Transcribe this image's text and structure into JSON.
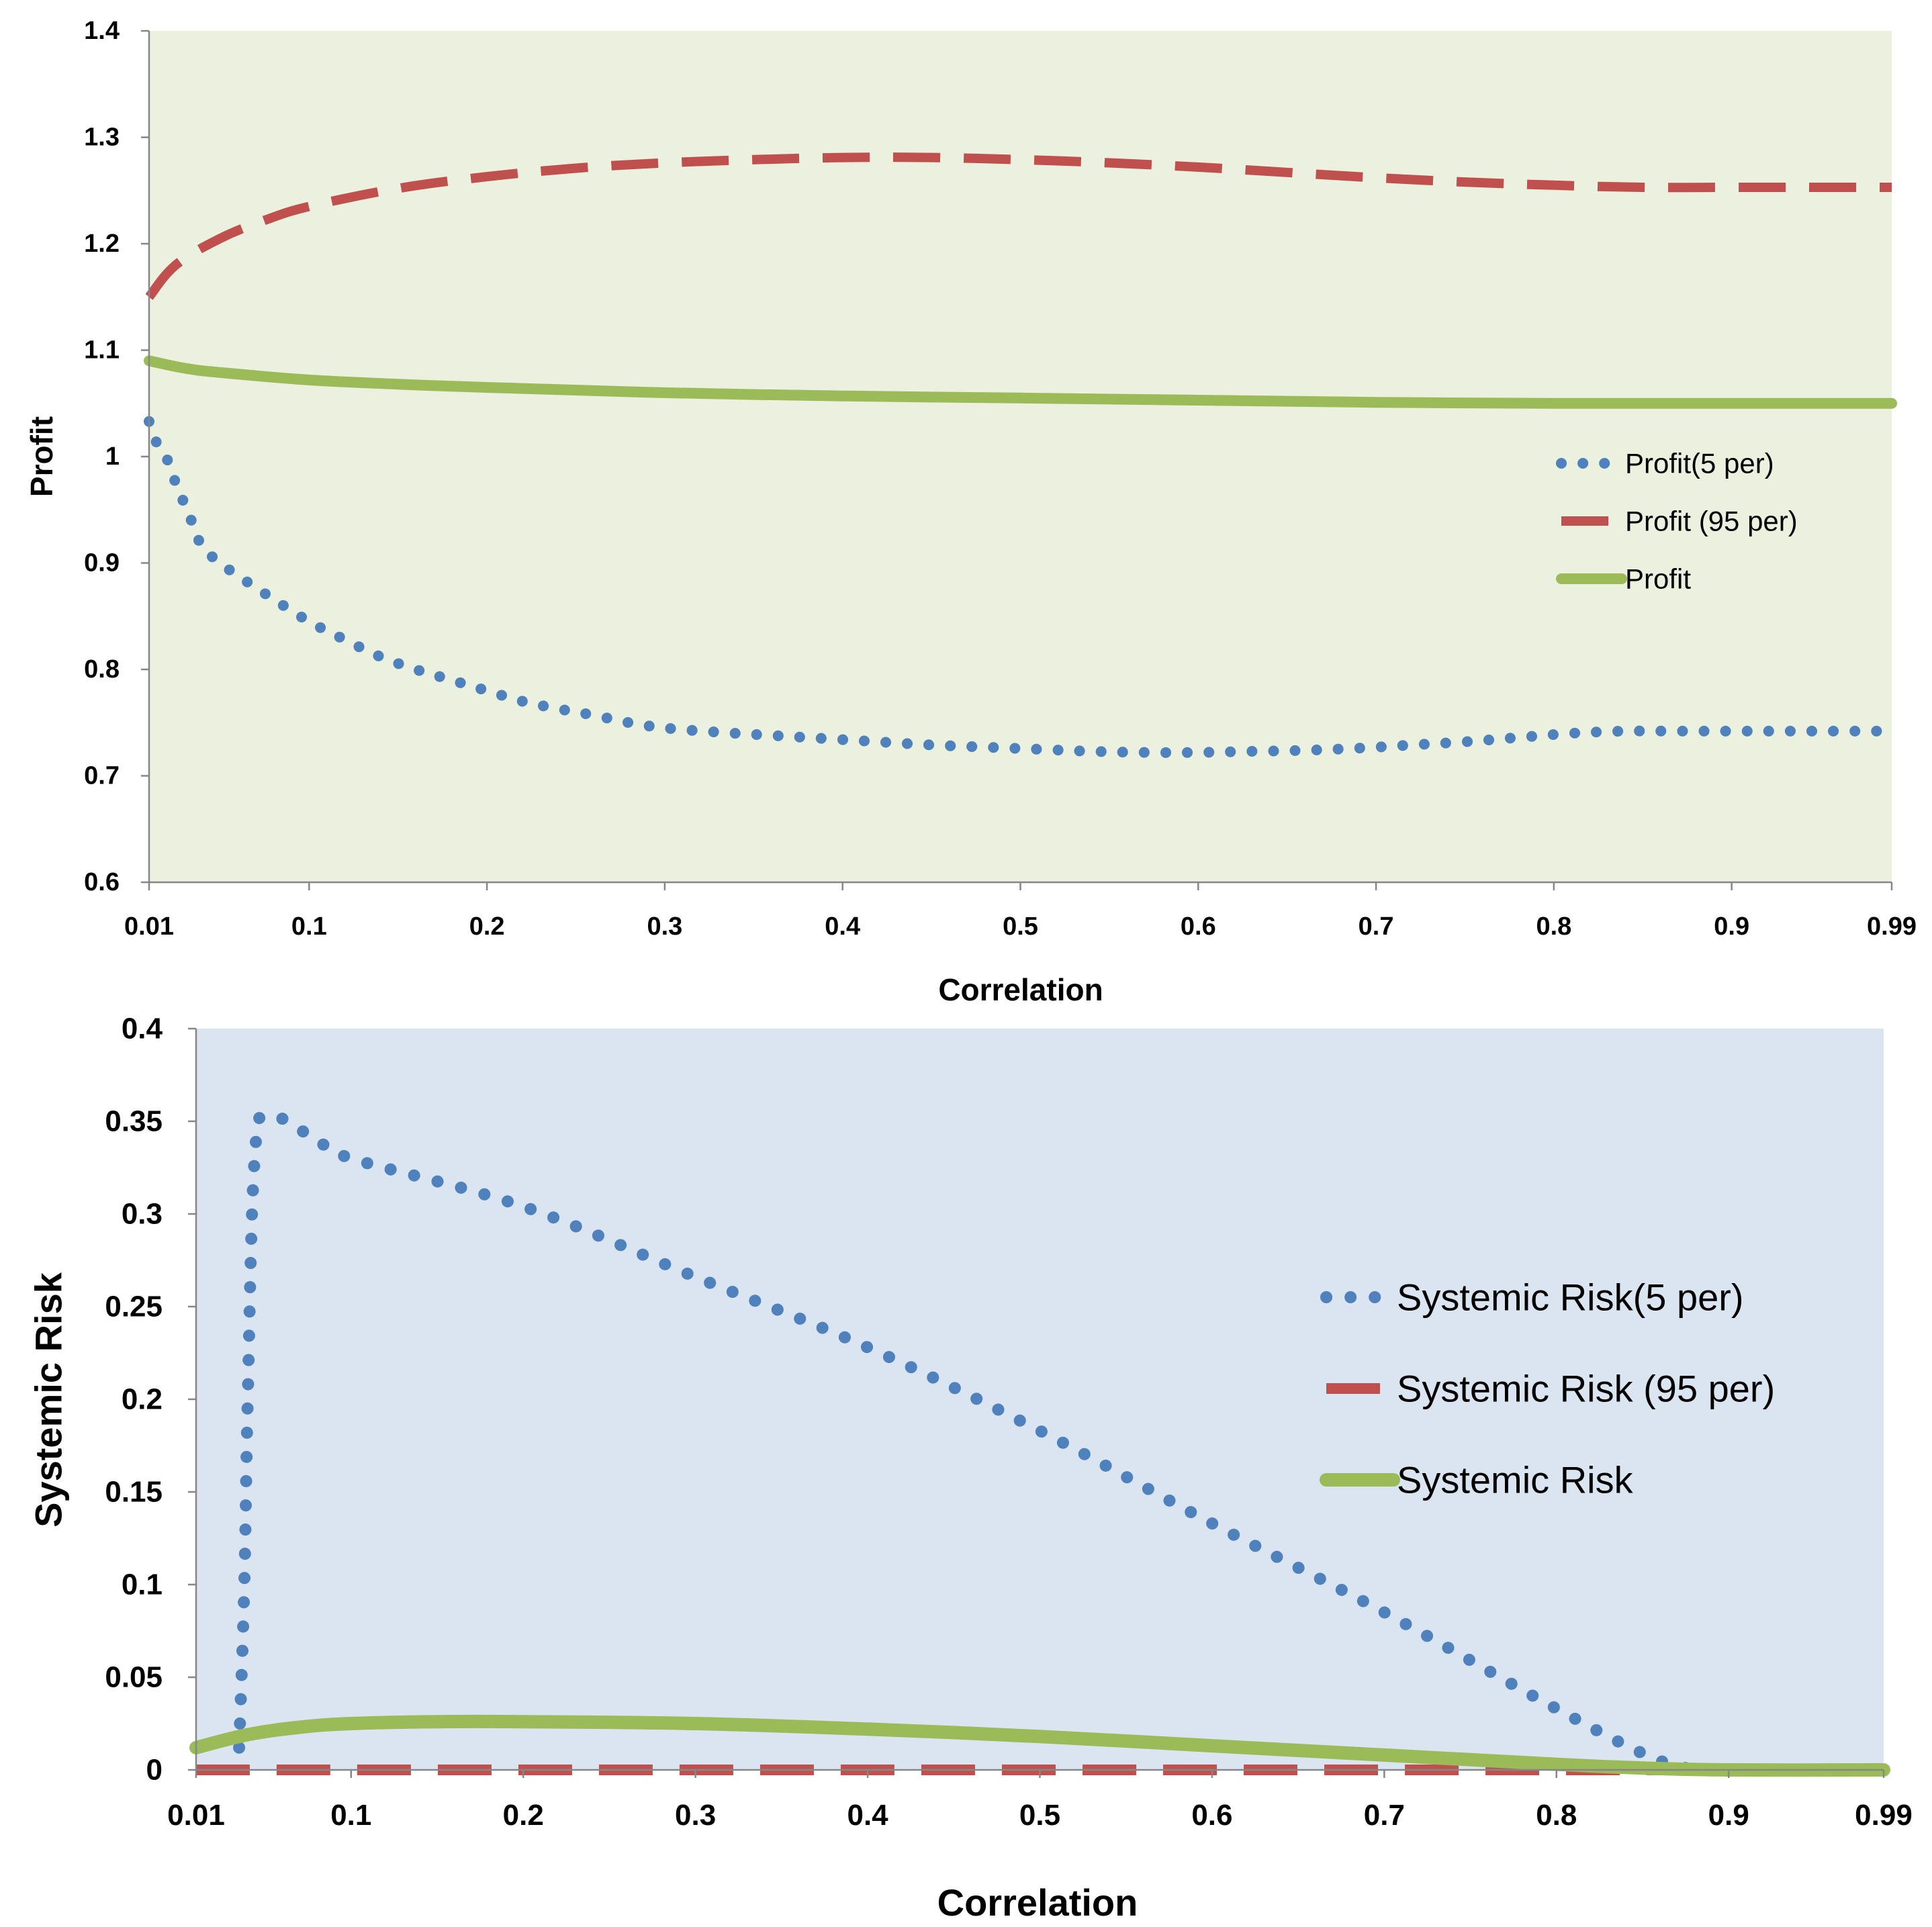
{
  "colors": {
    "series_5per": "#4f81bd",
    "series_95per": "#c0504d",
    "series_mean": "#9bbb59",
    "panel1_bg": "#ebf1de",
    "panel2_bg": "#dbe5f1",
    "axis": "#868686"
  },
  "chart_data": [
    {
      "type": "line",
      "title": "",
      "xlabel": "Correlation",
      "ylabel": "Profit",
      "x_tick_labels": [
        "0.01",
        "0.1",
        "0.2",
        "0.3",
        "0.4",
        "0.5",
        "0.6",
        "0.7",
        "0.8",
        "0.9",
        "0.99"
      ],
      "x_tick_values": [
        0.01,
        0.1,
        0.2,
        0.3,
        0.4,
        0.5,
        0.6,
        0.7,
        0.8,
        0.9,
        0.99
      ],
      "xlim": [
        0.01,
        0.99
      ],
      "y_tick_labels": [
        "0.6",
        "0.7",
        "0.8",
        "0.9",
        "1",
        "1.1",
        "1.2",
        "1.3",
        "1.4"
      ],
      "y_tick_values": [
        0.6,
        0.7,
        0.8,
        0.9,
        1.0,
        1.1,
        1.2,
        1.3,
        1.4
      ],
      "ylim": [
        0.6,
        1.4
      ],
      "grid": false,
      "legend_position": "right",
      "series": [
        {
          "name": "Profit(5 per)",
          "style": "dotted",
          "x": [
            0.01,
            0.015,
            0.02,
            0.025,
            0.03,
            0.035,
            0.04,
            0.05,
            0.06,
            0.07,
            0.08,
            0.1,
            0.12,
            0.14,
            0.16,
            0.18,
            0.2,
            0.22,
            0.24,
            0.26,
            0.28,
            0.3,
            0.33,
            0.36,
            0.39,
            0.42,
            0.45,
            0.48,
            0.51,
            0.54,
            0.57,
            0.6,
            0.63,
            0.66,
            0.69,
            0.72,
            0.75,
            0.78,
            0.81,
            0.84,
            0.87,
            0.9,
            0.93,
            0.96,
            0.99
          ],
          "values": [
            1.033,
            1.01,
            0.998,
            0.975,
            0.955,
            0.935,
            0.915,
            0.9,
            0.888,
            0.877,
            0.866,
            0.845,
            0.828,
            0.812,
            0.8,
            0.79,
            0.78,
            0.77,
            0.763,
            0.757,
            0.75,
            0.745,
            0.741,
            0.738,
            0.735,
            0.732,
            0.729,
            0.727,
            0.725,
            0.723,
            0.722,
            0.722,
            0.723,
            0.724,
            0.726,
            0.729,
            0.732,
            0.736,
            0.74,
            0.742,
            0.742,
            0.742,
            0.742,
            0.742,
            0.742
          ]
        },
        {
          "name": "Profit (95 per)",
          "style": "dashed",
          "x": [
            0.01,
            0.025,
            0.05,
            0.075,
            0.1,
            0.15,
            0.2,
            0.25,
            0.3,
            0.35,
            0.4,
            0.45,
            0.5,
            0.55,
            0.6,
            0.65,
            0.7,
            0.75,
            0.8,
            0.85,
            0.9,
            0.95,
            0.99
          ],
          "values": [
            1.15,
            1.18,
            1.205,
            1.222,
            1.235,
            1.252,
            1.263,
            1.271,
            1.276,
            1.279,
            1.281,
            1.281,
            1.279,
            1.276,
            1.272,
            1.267,
            1.262,
            1.258,
            1.255,
            1.253,
            1.253,
            1.253,
            1.253
          ]
        },
        {
          "name": "Profit",
          "style": "solid",
          "x": [
            0.01,
            0.03,
            0.05,
            0.1,
            0.15,
            0.2,
            0.3,
            0.4,
            0.5,
            0.6,
            0.7,
            0.8,
            0.9,
            0.99
          ],
          "values": [
            1.09,
            1.083,
            1.079,
            1.072,
            1.068,
            1.065,
            1.06,
            1.057,
            1.055,
            1.053,
            1.051,
            1.05,
            1.05,
            1.05
          ]
        }
      ]
    },
    {
      "type": "line",
      "title": "",
      "xlabel": "Correlation",
      "ylabel": "Systemic Risk",
      "x_tick_labels": [
        "0.01",
        "0.1",
        "0.2",
        "0.3",
        "0.4",
        "0.5",
        "0.6",
        "0.7",
        "0.8",
        "0.9",
        "0.99"
      ],
      "x_tick_values": [
        0.01,
        0.1,
        0.2,
        0.3,
        0.4,
        0.5,
        0.6,
        0.7,
        0.8,
        0.9,
        0.99
      ],
      "xlim": [
        0.01,
        0.99
      ],
      "y_tick_labels": [
        "0",
        "0.05",
        "0.1",
        "0.15",
        "0.2",
        "0.25",
        "0.3",
        "0.35",
        "0.4"
      ],
      "y_tick_values": [
        0,
        0.05,
        0.1,
        0.15,
        0.2,
        0.25,
        0.3,
        0.35,
        0.4
      ],
      "ylim": [
        0,
        0.4
      ],
      "grid": false,
      "legend_position": "right",
      "series": [
        {
          "name": "Systemic Risk(5 per)",
          "style": "dotted",
          "x": [
            0.035,
            0.038,
            0.04,
            0.044,
            0.052,
            0.08,
            0.1,
            0.2,
            0.3,
            0.4,
            0.5,
            0.6,
            0.7,
            0.8,
            0.86,
            0.89,
            0.9,
            0.95,
            0.99
          ],
          "values": [
            0.012,
            0.1,
            0.2,
            0.33,
            0.353,
            0.34,
            0.33,
            0.304,
            0.266,
            0.228,
            0.183,
            0.133,
            0.085,
            0.033,
            0.005,
            0.0,
            0.0,
            0.0,
            0.0
          ]
        },
        {
          "name": "Systemic Risk (95 per)",
          "style": "dashed",
          "x": [
            0.01,
            0.99
          ],
          "values": [
            0.0,
            0.0
          ]
        },
        {
          "name": "Systemic Risk",
          "style": "solid",
          "x": [
            0.01,
            0.04,
            0.07,
            0.1,
            0.15,
            0.2,
            0.3,
            0.4,
            0.5,
            0.6,
            0.7,
            0.8,
            0.85,
            0.9,
            0.99
          ],
          "values": [
            0.012,
            0.019,
            0.023,
            0.025,
            0.026,
            0.026,
            0.025,
            0.022,
            0.018,
            0.013,
            0.008,
            0.003,
            0.001,
            0.0,
            0.0
          ]
        }
      ]
    }
  ]
}
